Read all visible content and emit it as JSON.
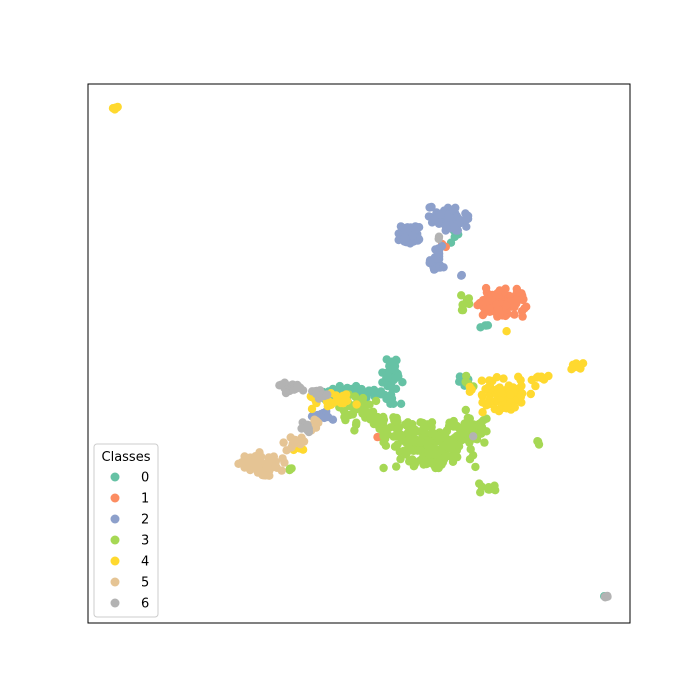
{
  "chart_data": {
    "type": "scatter",
    "title": "",
    "xlabel": "",
    "ylabel": "",
    "xlim": [
      0,
      100
    ],
    "ylim": [
      0,
      100
    ],
    "grid": false,
    "axes_ticks": false,
    "legend": {
      "title": "Classes",
      "placement": "lower-left",
      "entries": [
        "0",
        "1",
        "2",
        "3",
        "4",
        "5",
        "6"
      ]
    },
    "series": [
      {
        "name": "0",
        "color": "#66c2a5",
        "clusters": [
          {
            "cx": 56.0,
            "cy": 45.5,
            "rx": 2.0,
            "ry": 4.0,
            "n": 45,
            "seed": 11
          },
          {
            "cx": 48.0,
            "cy": 42.5,
            "rx": 5.0,
            "ry": 1.2,
            "n": 45,
            "seed": 12
          },
          {
            "cx": 67.5,
            "cy": 72.0,
            "rx": 0.8,
            "ry": 1.2,
            "n": 6,
            "seed": 13
          },
          {
            "cx": 73.0,
            "cy": 55.0,
            "rx": 1.0,
            "ry": 0.5,
            "n": 4,
            "seed": 14
          },
          {
            "cx": 69.0,
            "cy": 45.0,
            "rx": 1.2,
            "ry": 0.8,
            "n": 5,
            "seed": 15
          },
          {
            "cx": 95.6,
            "cy": 4.9,
            "rx": 0.3,
            "ry": 0.3,
            "n": 2,
            "seed": 16
          }
        ]
      },
      {
        "name": "1",
        "color": "#fc8d62",
        "clusters": [
          {
            "cx": 76.0,
            "cy": 59.5,
            "rx": 4.0,
            "ry": 2.2,
            "n": 110,
            "seed": 21
          },
          {
            "cx": 66.0,
            "cy": 70.5,
            "rx": 0.6,
            "ry": 0.6,
            "n": 2,
            "seed": 22
          },
          {
            "cx": 53.5,
            "cy": 34.5,
            "rx": 0.5,
            "ry": 0.5,
            "n": 2,
            "seed": 23
          }
        ]
      },
      {
        "name": "2",
        "color": "#8da0cb",
        "clusters": [
          {
            "cx": 66.5,
            "cy": 75.0,
            "rx": 3.0,
            "ry": 1.8,
            "n": 90,
            "seed": 31
          },
          {
            "cx": 59.5,
            "cy": 72.0,
            "rx": 1.8,
            "ry": 1.3,
            "n": 60,
            "seed": 32
          },
          {
            "cx": 64.5,
            "cy": 67.5,
            "rx": 1.2,
            "ry": 2.2,
            "n": 30,
            "seed": 33
          },
          {
            "cx": 68.5,
            "cy": 64.5,
            "rx": 0.4,
            "ry": 0.4,
            "n": 2,
            "seed": 34
          },
          {
            "cx": 64.0,
            "cy": 31.5,
            "rx": 1.2,
            "ry": 0.6,
            "n": 6,
            "seed": 35
          },
          {
            "cx": 43.0,
            "cy": 39.0,
            "rx": 2.5,
            "ry": 1.5,
            "n": 12,
            "seed": 36
          }
        ]
      },
      {
        "name": "3",
        "color": "#a6d854",
        "clusters": [
          {
            "cx": 63.0,
            "cy": 33.0,
            "rx": 7.0,
            "ry": 3.5,
            "n": 180,
            "seed": 41
          },
          {
            "cx": 54.0,
            "cy": 37.0,
            "rx": 4.0,
            "ry": 2.0,
            "n": 40,
            "seed": 42
          },
          {
            "cx": 70.5,
            "cy": 36.5,
            "rx": 2.5,
            "ry": 2.5,
            "n": 35,
            "seed": 43
          },
          {
            "cx": 50.0,
            "cy": 40.0,
            "rx": 3.0,
            "ry": 2.0,
            "n": 30,
            "seed": 44
          },
          {
            "cx": 74.0,
            "cy": 25.0,
            "rx": 1.8,
            "ry": 0.8,
            "n": 8,
            "seed": 45
          },
          {
            "cx": 83.0,
            "cy": 33.5,
            "rx": 0.6,
            "ry": 0.4,
            "n": 3,
            "seed": 46
          },
          {
            "cx": 69.5,
            "cy": 59.5,
            "rx": 1.2,
            "ry": 1.2,
            "n": 8,
            "seed": 47
          },
          {
            "cx": 37.0,
            "cy": 28.5,
            "rx": 1.2,
            "ry": 0.4,
            "n": 4,
            "seed": 48
          },
          {
            "cx": 70.0,
            "cy": 45.0,
            "rx": 1.0,
            "ry": 1.0,
            "n": 5,
            "seed": 49
          }
        ]
      },
      {
        "name": "4",
        "color": "#ffd92f",
        "clusters": [
          {
            "cx": 76.5,
            "cy": 42.5,
            "rx": 5.0,
            "ry": 2.8,
            "n": 80,
            "seed": 51
          },
          {
            "cx": 45.0,
            "cy": 41.5,
            "rx": 4.5,
            "ry": 1.5,
            "n": 25,
            "seed": 52
          },
          {
            "cx": 90.0,
            "cy": 47.5,
            "rx": 1.5,
            "ry": 0.6,
            "n": 8,
            "seed": 53
          },
          {
            "cx": 83.5,
            "cy": 45.5,
            "rx": 1.5,
            "ry": 0.8,
            "n": 6,
            "seed": 54
          },
          {
            "cx": 5.0,
            "cy": 95.5,
            "rx": 0.4,
            "ry": 0.3,
            "n": 6,
            "seed": 55
          },
          {
            "cx": 77.5,
            "cy": 54.5,
            "rx": 0.3,
            "ry": 0.3,
            "n": 1,
            "seed": 56
          },
          {
            "cx": 38.5,
            "cy": 32.5,
            "rx": 1.5,
            "ry": 0.8,
            "n": 6,
            "seed": 57
          }
        ]
      },
      {
        "name": "5",
        "color": "#e5c494",
        "clusters": [
          {
            "cx": 32.0,
            "cy": 29.5,
            "rx": 3.5,
            "ry": 1.8,
            "n": 70,
            "seed": 61
          },
          {
            "cx": 38.5,
            "cy": 33.5,
            "rx": 2.0,
            "ry": 1.2,
            "n": 15,
            "seed": 62
          },
          {
            "cx": 41.5,
            "cy": 36.5,
            "rx": 1.5,
            "ry": 1.0,
            "n": 8,
            "seed": 63
          }
        ]
      },
      {
        "name": "6",
        "color": "#b3b3b3",
        "clusters": [
          {
            "cx": 37.5,
            "cy": 43.5,
            "rx": 1.8,
            "ry": 0.9,
            "n": 20,
            "seed": 71
          },
          {
            "cx": 42.5,
            "cy": 42.5,
            "rx": 1.5,
            "ry": 1.0,
            "n": 15,
            "seed": 72
          },
          {
            "cx": 40.5,
            "cy": 36.5,
            "rx": 1.5,
            "ry": 1.5,
            "n": 10,
            "seed": 73
          },
          {
            "cx": 95.6,
            "cy": 4.9,
            "rx": 0.5,
            "ry": 0.3,
            "n": 5,
            "seed": 74
          },
          {
            "cx": 64.5,
            "cy": 71.5,
            "rx": 0.5,
            "ry": 0.5,
            "n": 2,
            "seed": 75
          },
          {
            "cx": 71.0,
            "cy": 34.5,
            "rx": 0.3,
            "ry": 0.3,
            "n": 1,
            "seed": 76
          }
        ]
      }
    ]
  }
}
